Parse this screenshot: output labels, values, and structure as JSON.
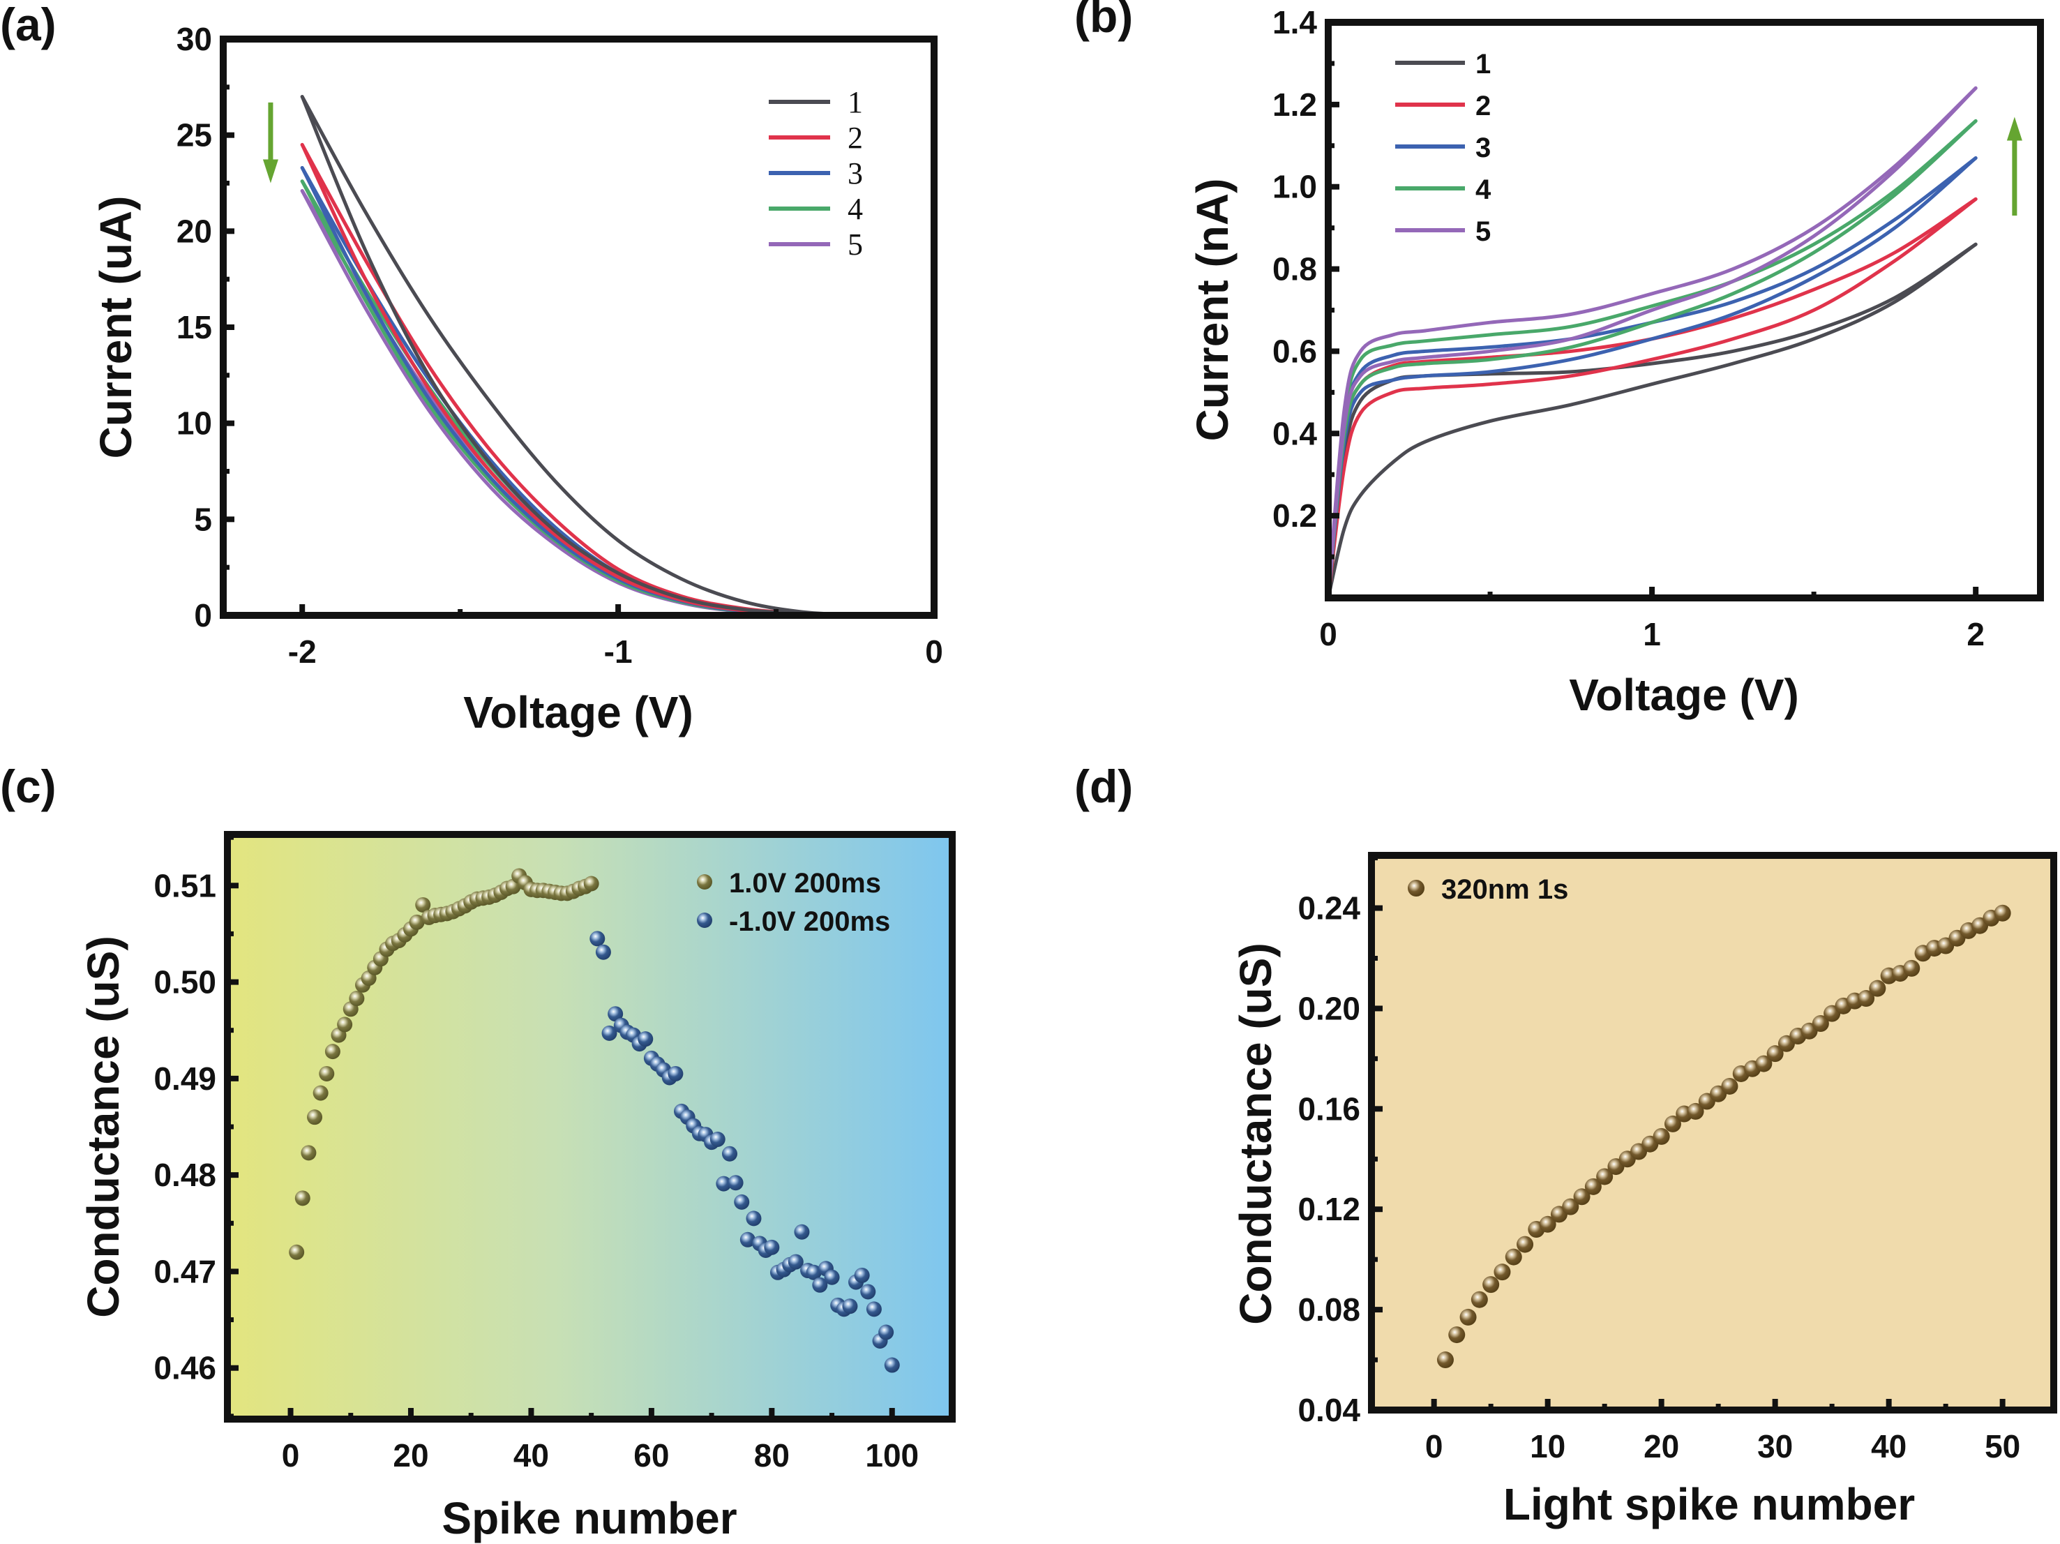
{
  "chart_data": [
    {
      "id": "a",
      "panel_label": "(a)",
      "type": "line",
      "xlabel": "Voltage (V)",
      "ylabel": "Current (uA)",
      "xlim": [
        -2.25,
        0
      ],
      "ylim": [
        0,
        30
      ],
      "xticks": [
        -2,
        -1,
        0
      ],
      "xtick_labels": [
        "-2",
        "-1",
        "0"
      ],
      "yticks": [
        0,
        5,
        10,
        15,
        20,
        25,
        30
      ],
      "ytick_labels": [
        "0",
        "5",
        "10",
        "15",
        "20",
        "25",
        "30"
      ],
      "grid": false,
      "legend_position": "top-right",
      "annotation": {
        "type": "arrow",
        "direction": "down",
        "color": "#65a531",
        "x": -2.1,
        "y_from": 26.7,
        "y_to": 22.5
      },
      "x": [
        -2,
        -1.8,
        -1.6,
        -1.4,
        -1.2,
        -1.0,
        -0.8,
        -0.6,
        -0.4,
        -0.2,
        0
      ],
      "series": [
        {
          "name": "1",
          "color": "#4b4b52",
          "outer": [
            27,
            21,
            15.6,
            11,
            7,
            3.9,
            1.9,
            0.7,
            0.15,
            0.05,
            0.05
          ],
          "inner": [
            27,
            19,
            12.5,
            7.8,
            4.4,
            2.2,
            0.9,
            0.3,
            0.1,
            0.05,
            0.05
          ]
        },
        {
          "name": "2",
          "color": "#e0334b",
          "outer": [
            24.5,
            18.5,
            13,
            8.5,
            5,
            2.4,
            1,
            0.35,
            0.1,
            0.05,
            0.05
          ],
          "inner": [
            24.5,
            17.5,
            11.8,
            7.4,
            4.2,
            2,
            0.8,
            0.25,
            0.08,
            0.05,
            0.05
          ]
        },
        {
          "name": "3",
          "color": "#3c62b0",
          "outer": [
            23.3,
            17.5,
            12.3,
            8,
            4.6,
            2.2,
            0.9,
            0.3,
            0.08,
            0.05,
            0.05
          ],
          "inner": [
            23.3,
            16.8,
            11.3,
            7.1,
            4,
            1.9,
            0.75,
            0.22,
            0.06,
            0.05,
            0.05
          ]
        },
        {
          "name": "4",
          "color": "#49a86a",
          "outer": [
            22.6,
            17,
            11.9,
            7.7,
            4.4,
            2.1,
            0.85,
            0.28,
            0.07,
            0.05,
            0.05
          ],
          "inner": [
            22.6,
            16.4,
            11,
            6.9,
            3.9,
            1.8,
            0.7,
            0.2,
            0.06,
            0.05,
            0.05
          ]
        },
        {
          "name": "5",
          "color": "#9468b8",
          "outer": [
            22.1,
            16.6,
            11.5,
            7.4,
            4.2,
            2.0,
            0.8,
            0.25,
            0.06,
            0.05,
            0.05
          ],
          "inner": [
            22.1,
            16,
            10.7,
            6.6,
            3.7,
            1.7,
            0.65,
            0.18,
            0.05,
            0.05,
            0.05
          ]
        }
      ]
    },
    {
      "id": "b",
      "panel_label": "(b)",
      "type": "line",
      "xlabel": "Voltage (V)",
      "ylabel": "Current (nA)",
      "xlim": [
        0,
        2.2
      ],
      "ylim": [
        0,
        1.4
      ],
      "xticks": [
        0,
        1,
        2
      ],
      "xtick_labels": [
        "0",
        "1",
        "2"
      ],
      "yticks": [
        0.2,
        0.4,
        0.6,
        0.8,
        1.0,
        1.2,
        1.4
      ],
      "ytick_labels": [
        "0.2",
        "0.4",
        "0.6",
        "0.8",
        "1.0",
        "1.2",
        "1.4"
      ],
      "grid": false,
      "legend_position": "top-left",
      "annotation": {
        "type": "arrow",
        "direction": "up",
        "color": "#65a531",
        "x": 2.12,
        "y_from": 0.93,
        "y_to": 1.17
      },
      "x": [
        0,
        0.05,
        0.1,
        0.2,
        0.3,
        0.5,
        0.75,
        1.0,
        1.25,
        1.5,
        1.75,
        2.0
      ],
      "series": [
        {
          "name": "1",
          "color": "#4b4b52",
          "upper": [
            0,
            0.35,
            0.48,
            0.53,
            0.54,
            0.545,
            0.55,
            0.57,
            0.6,
            0.65,
            0.73,
            0.86
          ],
          "lower": [
            0,
            0.17,
            0.25,
            0.33,
            0.38,
            0.43,
            0.47,
            0.52,
            0.57,
            0.63,
            0.72,
            0.86
          ]
        },
        {
          "name": "2",
          "color": "#e0334b",
          "upper": [
            0,
            0.4,
            0.52,
            0.565,
            0.575,
            0.585,
            0.6,
            0.63,
            0.68,
            0.75,
            0.84,
            0.97
          ],
          "lower": [
            0,
            0.32,
            0.45,
            0.5,
            0.51,
            0.52,
            0.54,
            0.58,
            0.63,
            0.7,
            0.82,
            0.97
          ]
        },
        {
          "name": "3",
          "color": "#3c62b0",
          "upper": [
            0,
            0.42,
            0.55,
            0.59,
            0.6,
            0.61,
            0.63,
            0.67,
            0.72,
            0.8,
            0.92,
            1.07
          ],
          "lower": [
            0,
            0.38,
            0.5,
            0.53,
            0.54,
            0.55,
            0.58,
            0.63,
            0.69,
            0.78,
            0.9,
            1.07
          ]
        },
        {
          "name": "4",
          "color": "#49a86a",
          "upper": [
            0,
            0.44,
            0.58,
            0.615,
            0.625,
            0.64,
            0.66,
            0.71,
            0.77,
            0.86,
            0.99,
            1.16
          ],
          "lower": [
            0,
            0.4,
            0.52,
            0.56,
            0.57,
            0.58,
            0.61,
            0.67,
            0.74,
            0.84,
            0.98,
            1.16
          ]
        },
        {
          "name": "5",
          "color": "#9468b8",
          "upper": [
            0,
            0.46,
            0.6,
            0.64,
            0.65,
            0.67,
            0.69,
            0.74,
            0.8,
            0.9,
            1.05,
            1.24
          ],
          "lower": [
            0,
            0.42,
            0.54,
            0.575,
            0.585,
            0.6,
            0.63,
            0.7,
            0.77,
            0.88,
            1.04,
            1.24
          ]
        }
      ]
    },
    {
      "id": "c",
      "panel_label": "(c)",
      "type": "scatter",
      "xlabel": "Spike number",
      "ylabel": "Conductance (uS)",
      "xlim": [
        -10.5,
        110
      ],
      "ylim": [
        0.4547,
        0.5153
      ],
      "xticks": [
        0,
        20,
        40,
        60,
        80,
        100
      ],
      "xtick_labels": [
        "0",
        "20",
        "40",
        "60",
        "80",
        "100"
      ],
      "yticks": [
        0.46,
        0.47,
        0.48,
        0.49,
        0.5,
        0.51
      ],
      "ytick_labels": [
        "0.46",
        "0.47",
        "0.48",
        "0.49",
        "0.50",
        "0.51"
      ],
      "grid": false,
      "legend_position": "top-right",
      "background_gradient": [
        "#e3e57f",
        "#c6e0b6",
        "#7ec5ef"
      ],
      "series": [
        {
          "name": "1.0V   200ms",
          "color": "#6d6a34",
          "x": [
            1,
            2,
            3,
            4,
            5,
            6,
            7,
            8,
            9,
            10,
            11,
            12,
            13,
            14,
            15,
            16,
            17,
            18,
            19,
            20,
            21,
            22,
            23,
            24,
            25,
            26,
            27,
            28,
            29,
            30,
            31,
            32,
            33,
            34,
            35,
            36,
            37,
            38,
            39,
            40,
            41,
            42,
            43,
            44,
            45,
            46,
            47,
            48,
            49,
            50
          ],
          "y": [
            0.472,
            0.4776,
            0.4823,
            0.486,
            0.4885,
            0.4905,
            0.4928,
            0.4945,
            0.4956,
            0.4972,
            0.4983,
            0.4997,
            0.5004,
            0.5015,
            0.5024,
            0.5034,
            0.504,
            0.5043,
            0.5049,
            0.5055,
            0.5062,
            0.508,
            0.5067,
            0.5069,
            0.507,
            0.5071,
            0.5073,
            0.5076,
            0.5079,
            0.5083,
            0.5086,
            0.5087,
            0.5088,
            0.509,
            0.5093,
            0.5097,
            0.5099,
            0.511,
            0.5103,
            0.5096,
            0.5095,
            0.5095,
            0.5094,
            0.5093,
            0.5092,
            0.5092,
            0.5094,
            0.5097,
            0.5099,
            0.5102
          ]
        },
        {
          "name": "-1.0V  200ms",
          "color": "#2b4f83",
          "x": [
            51,
            52,
            53,
            54,
            55,
            56,
            57,
            58,
            59,
            60,
            61,
            62,
            63,
            64,
            65,
            66,
            67,
            68,
            69,
            70,
            71,
            72,
            73,
            74,
            75,
            76,
            77,
            78,
            79,
            80,
            81,
            82,
            83,
            84,
            85,
            86,
            87,
            88,
            89,
            90,
            91,
            92,
            93,
            94,
            95,
            96,
            97,
            98,
            99,
            100
          ],
          "y": [
            0.5045,
            0.5031,
            0.4947,
            0.4967,
            0.4955,
            0.4948,
            0.4945,
            0.4936,
            0.4941,
            0.4921,
            0.4915,
            0.4909,
            0.4901,
            0.4905,
            0.4866,
            0.486,
            0.4851,
            0.4843,
            0.4842,
            0.4834,
            0.4837,
            0.4791,
            0.4822,
            0.4792,
            0.4772,
            0.4733,
            0.4755,
            0.4729,
            0.4722,
            0.4725,
            0.4699,
            0.4702,
            0.4707,
            0.471,
            0.4741,
            0.4701,
            0.4699,
            0.4686,
            0.4703,
            0.4694,
            0.4665,
            0.4661,
            0.4664,
            0.4689,
            0.4696,
            0.4679,
            0.4661,
            0.4628,
            0.4637,
            0.4603
          ]
        }
      ]
    },
    {
      "id": "d",
      "panel_label": "(d)",
      "type": "scatter",
      "xlabel": "Light spike number",
      "ylabel": "Conductance (uS)",
      "xlim": [
        -5.5,
        54.5
      ],
      "ylim": [
        0.04,
        0.261
      ],
      "xticks": [
        0,
        10,
        20,
        30,
        40,
        50
      ],
      "xtick_labels": [
        "0",
        "10",
        "20",
        "30",
        "40",
        "50"
      ],
      "yticks": [
        0.04,
        0.08,
        0.12,
        0.16,
        0.2,
        0.24
      ],
      "ytick_labels": [
        "0.04",
        "0.08",
        "0.12",
        "0.16",
        "0.20",
        "0.24"
      ],
      "grid": false,
      "legend_position": "top-left",
      "background_color": "#f0dbac",
      "series": [
        {
          "name": "320nm 1s",
          "color": "#6a5228",
          "x": [
            1,
            2,
            3,
            4,
            5,
            6,
            7,
            8,
            9,
            10,
            11,
            12,
            13,
            14,
            15,
            16,
            17,
            18,
            19,
            20,
            21,
            22,
            23,
            24,
            25,
            26,
            27,
            28,
            29,
            30,
            31,
            32,
            33,
            34,
            35,
            36,
            37,
            38,
            39,
            40,
            41,
            42,
            43,
            44,
            45,
            46,
            47,
            48,
            49,
            50
          ],
          "y": [
            0.06,
            0.07,
            0.077,
            0.084,
            0.09,
            0.095,
            0.101,
            0.106,
            0.112,
            0.114,
            0.118,
            0.121,
            0.125,
            0.129,
            0.133,
            0.137,
            0.14,
            0.143,
            0.146,
            0.149,
            0.154,
            0.158,
            0.159,
            0.163,
            0.166,
            0.169,
            0.174,
            0.176,
            0.178,
            0.182,
            0.186,
            0.189,
            0.191,
            0.194,
            0.198,
            0.201,
            0.203,
            0.204,
            0.208,
            0.213,
            0.214,
            0.216,
            0.222,
            0.224,
            0.225,
            0.228,
            0.231,
            0.233,
            0.236,
            0.238
          ]
        }
      ]
    }
  ]
}
